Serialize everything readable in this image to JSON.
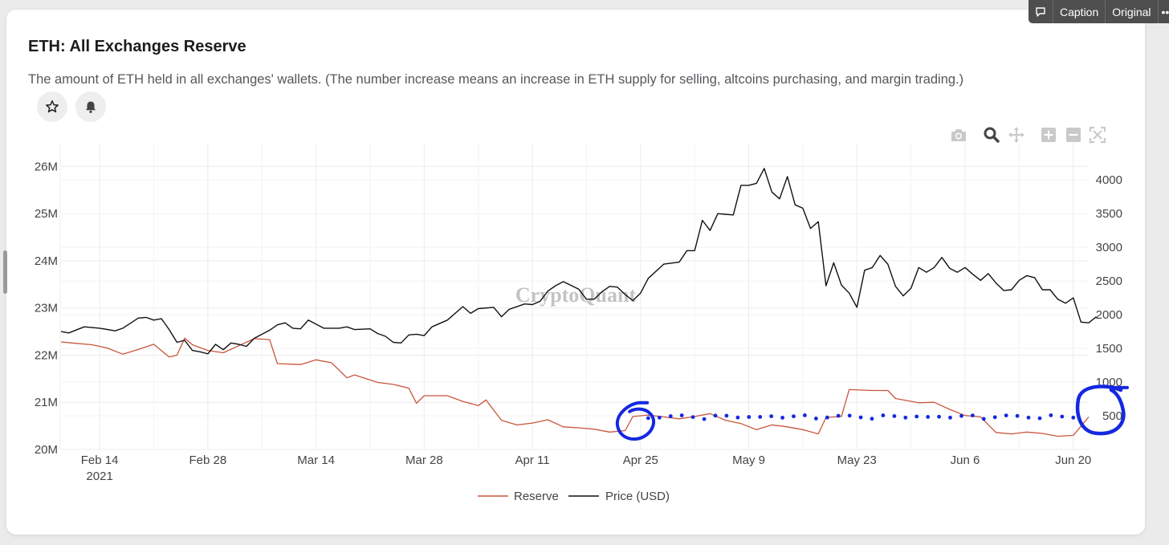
{
  "topbar": {
    "caption_label": "Caption",
    "original_label": "Original",
    "more_label": "•• "
  },
  "card": {
    "title": "ETH: All Exchanges Reserve",
    "description": "The amount of ETH held in all exchanges' wallets. (The number increase means an increase in ETH supply for selling, altcoins purchasing, and margin trading.)"
  },
  "icons": [
    "star-icon",
    "bell-icon",
    "camera-icon",
    "zoom-icon",
    "pan-icon",
    "zoom-in-icon",
    "zoom-out-icon",
    "autoscale-icon",
    "comment-icon"
  ],
  "colors": {
    "reserve": "#c8553d",
    "price": "#111111",
    "annotation": "#1428e0",
    "grid": "#ececec",
    "axis_text": "#444444"
  },
  "watermark": "CryptoQuant",
  "chart_data": {
    "type": "line",
    "x_start": "2021-02-09",
    "x_end": "2021-06-22",
    "x_step_days": 1,
    "xticks": [
      {
        "date": "2021-02-14",
        "label": "Feb 14",
        "sublabel": "2021"
      },
      {
        "date": "2021-02-28",
        "label": "Feb 28"
      },
      {
        "date": "2021-03-14",
        "label": "Mar 14"
      },
      {
        "date": "2021-03-28",
        "label": "Mar 28"
      },
      {
        "date": "2021-04-11",
        "label": "Apr 11"
      },
      {
        "date": "2021-04-25",
        "label": "Apr 25"
      },
      {
        "date": "2021-05-09",
        "label": "May 9"
      },
      {
        "date": "2021-05-23",
        "label": "May 23"
      },
      {
        "date": "2021-06-06",
        "label": "Jun 6"
      },
      {
        "date": "2021-06-20",
        "label": "Jun 20"
      }
    ],
    "y_left": {
      "range": [
        20000000,
        26500000
      ],
      "ticks": [
        20000000,
        21000000,
        22000000,
        23000000,
        24000000,
        25000000,
        26000000
      ],
      "tick_labels": [
        "20M",
        "21M",
        "22M",
        "23M",
        "24M",
        "25M",
        "26M"
      ]
    },
    "y_right": {
      "range": [
        0,
        4550
      ],
      "ticks": [
        500,
        1000,
        1500,
        2000,
        2500,
        3000,
        3500,
        4000
      ],
      "tick_labels": [
        "500",
        "1000",
        "1500",
        "2000",
        "2500",
        "3000",
        "3500",
        "4000"
      ]
    },
    "series": [
      {
        "name": "Reserve",
        "axis": "left",
        "keypoints": [
          [
            "2021-02-09",
            22280000
          ],
          [
            "2021-02-11",
            22250000
          ],
          [
            "2021-02-13",
            22220000
          ],
          [
            "2021-02-15",
            22150000
          ],
          [
            "2021-02-17",
            22020000
          ],
          [
            "2021-02-19",
            22120000
          ],
          [
            "2021-02-21",
            22230000
          ],
          [
            "2021-02-23",
            21960000
          ],
          [
            "2021-02-24",
            22000000
          ],
          [
            "2021-02-25",
            22360000
          ],
          [
            "2021-02-26",
            22220000
          ],
          [
            "2021-02-28",
            22100000
          ],
          [
            "2021-03-02",
            22050000
          ],
          [
            "2021-03-04",
            22200000
          ],
          [
            "2021-03-06",
            22350000
          ],
          [
            "2021-03-08",
            22330000
          ],
          [
            "2021-03-09",
            21820000
          ],
          [
            "2021-03-12",
            21800000
          ],
          [
            "2021-03-14",
            21900000
          ],
          [
            "2021-03-16",
            21840000
          ],
          [
            "2021-03-18",
            21520000
          ],
          [
            "2021-03-19",
            21580000
          ],
          [
            "2021-03-22",
            21420000
          ],
          [
            "2021-03-24",
            21380000
          ],
          [
            "2021-03-26",
            21300000
          ],
          [
            "2021-03-27",
            20980000
          ],
          [
            "2021-03-28",
            21140000
          ],
          [
            "2021-03-31",
            21140000
          ],
          [
            "2021-04-02",
            21020000
          ],
          [
            "2021-04-04",
            20930000
          ],
          [
            "2021-04-05",
            21050000
          ],
          [
            "2021-04-07",
            20620000
          ],
          [
            "2021-04-09",
            20520000
          ],
          [
            "2021-04-11",
            20560000
          ],
          [
            "2021-04-13",
            20630000
          ],
          [
            "2021-04-15",
            20480000
          ],
          [
            "2021-04-17",
            20460000
          ],
          [
            "2021-04-19",
            20430000
          ],
          [
            "2021-04-21",
            20370000
          ],
          [
            "2021-04-23",
            20400000
          ],
          [
            "2021-04-24",
            20700000
          ],
          [
            "2021-04-26",
            20730000
          ],
          [
            "2021-04-28",
            20690000
          ],
          [
            "2021-04-30",
            20650000
          ],
          [
            "2021-05-02",
            20700000
          ],
          [
            "2021-05-04",
            20760000
          ],
          [
            "2021-05-06",
            20620000
          ],
          [
            "2021-05-08",
            20550000
          ],
          [
            "2021-05-10",
            20420000
          ],
          [
            "2021-05-12",
            20520000
          ],
          [
            "2021-05-14",
            20480000
          ],
          [
            "2021-05-16",
            20420000
          ],
          [
            "2021-05-18",
            20330000
          ],
          [
            "2021-05-19",
            20680000
          ],
          [
            "2021-05-21",
            20700000
          ],
          [
            "2021-05-22",
            21270000
          ],
          [
            "2021-05-25",
            21250000
          ],
          [
            "2021-05-27",
            21250000
          ],
          [
            "2021-05-28",
            21080000
          ],
          [
            "2021-05-31",
            20990000
          ],
          [
            "2021-06-02",
            21000000
          ],
          [
            "2021-06-04",
            20850000
          ],
          [
            "2021-06-06",
            20720000
          ],
          [
            "2021-06-08",
            20690000
          ],
          [
            "2021-06-10",
            20360000
          ],
          [
            "2021-06-12",
            20330000
          ],
          [
            "2021-06-14",
            20370000
          ],
          [
            "2021-06-16",
            20340000
          ],
          [
            "2021-06-18",
            20280000
          ],
          [
            "2021-06-20",
            20300000
          ],
          [
            "2021-06-22",
            20690000
          ]
        ]
      },
      {
        "name": "Price (USD)",
        "axis": "right",
        "keypoints": [
          [
            "2021-02-09",
            1750
          ],
          [
            "2021-02-10",
            1730
          ],
          [
            "2021-02-12",
            1820
          ],
          [
            "2021-02-14",
            1800
          ],
          [
            "2021-02-16",
            1760
          ],
          [
            "2021-02-17",
            1800
          ],
          [
            "2021-02-19",
            1950
          ],
          [
            "2021-02-20",
            1960
          ],
          [
            "2021-02-21",
            1920
          ],
          [
            "2021-02-22",
            1940
          ],
          [
            "2021-02-23",
            1780
          ],
          [
            "2021-02-24",
            1590
          ],
          [
            "2021-02-25",
            1620
          ],
          [
            "2021-02-26",
            1470
          ],
          [
            "2021-02-27",
            1450
          ],
          [
            "2021-02-28",
            1420
          ],
          [
            "2021-03-01",
            1560
          ],
          [
            "2021-03-02",
            1480
          ],
          [
            "2021-03-03",
            1580
          ],
          [
            "2021-03-04",
            1560
          ],
          [
            "2021-03-05",
            1530
          ],
          [
            "2021-03-06",
            1650
          ],
          [
            "2021-03-08",
            1770
          ],
          [
            "2021-03-09",
            1850
          ],
          [
            "2021-03-10",
            1880
          ],
          [
            "2021-03-11",
            1800
          ],
          [
            "2021-03-12",
            1790
          ],
          [
            "2021-03-13",
            1920
          ],
          [
            "2021-03-15",
            1800
          ],
          [
            "2021-03-17",
            1800
          ],
          [
            "2021-03-18",
            1820
          ],
          [
            "2021-03-19",
            1780
          ],
          [
            "2021-03-21",
            1790
          ],
          [
            "2021-03-22",
            1720
          ],
          [
            "2021-03-23",
            1680
          ],
          [
            "2021-03-24",
            1590
          ],
          [
            "2021-03-25",
            1580
          ],
          [
            "2021-03-26",
            1700
          ],
          [
            "2021-03-27",
            1710
          ],
          [
            "2021-03-28",
            1690
          ],
          [
            "2021-03-29",
            1820
          ],
          [
            "2021-03-31",
            1920
          ],
          [
            "2021-04-02",
            2120
          ],
          [
            "2021-04-03",
            2020
          ],
          [
            "2021-04-04",
            2090
          ],
          [
            "2021-04-06",
            2110
          ],
          [
            "2021-04-07",
            1970
          ],
          [
            "2021-04-08",
            2080
          ],
          [
            "2021-04-10",
            2160
          ],
          [
            "2021-04-11",
            2150
          ],
          [
            "2021-04-12",
            2200
          ],
          [
            "2021-04-13",
            2350
          ],
          [
            "2021-04-14",
            2430
          ],
          [
            "2021-04-15",
            2490
          ],
          [
            "2021-04-17",
            2380
          ],
          [
            "2021-04-18",
            2230
          ],
          [
            "2021-04-19",
            2230
          ],
          [
            "2021-04-20",
            2340
          ],
          [
            "2021-04-21",
            2420
          ],
          [
            "2021-04-22",
            2410
          ],
          [
            "2021-04-23",
            2300
          ],
          [
            "2021-04-24",
            2210
          ],
          [
            "2021-04-25",
            2320
          ],
          [
            "2021-04-26",
            2540
          ],
          [
            "2021-04-28",
            2750
          ],
          [
            "2021-04-30",
            2780
          ],
          [
            "2021-05-01",
            2950
          ],
          [
            "2021-05-02",
            2950
          ],
          [
            "2021-05-03",
            3400
          ],
          [
            "2021-05-04",
            3250
          ],
          [
            "2021-05-05",
            3500
          ],
          [
            "2021-05-06",
            3490
          ],
          [
            "2021-05-07",
            3480
          ],
          [
            "2021-05-08",
            3920
          ],
          [
            "2021-05-09",
            3920
          ],
          [
            "2021-05-10",
            3950
          ],
          [
            "2021-05-11",
            4170
          ],
          [
            "2021-05-12",
            3820
          ],
          [
            "2021-05-13",
            3720
          ],
          [
            "2021-05-14",
            4050
          ],
          [
            "2021-05-15",
            3630
          ],
          [
            "2021-05-16",
            3580
          ],
          [
            "2021-05-17",
            3280
          ],
          [
            "2021-05-18",
            3380
          ],
          [
            "2021-05-19",
            2430
          ],
          [
            "2021-05-20",
            2770
          ],
          [
            "2021-05-21",
            2440
          ],
          [
            "2021-05-22",
            2320
          ],
          [
            "2021-05-23",
            2110
          ],
          [
            "2021-05-24",
            2660
          ],
          [
            "2021-05-25",
            2700
          ],
          [
            "2021-05-26",
            2880
          ],
          [
            "2021-05-27",
            2750
          ],
          [
            "2021-05-28",
            2420
          ],
          [
            "2021-05-29",
            2280
          ],
          [
            "2021-05-30",
            2390
          ],
          [
            "2021-05-31",
            2700
          ],
          [
            "2021-06-01",
            2630
          ],
          [
            "2021-06-02",
            2700
          ],
          [
            "2021-06-03",
            2850
          ],
          [
            "2021-06-04",
            2690
          ],
          [
            "2021-06-05",
            2630
          ],
          [
            "2021-06-06",
            2700
          ],
          [
            "2021-06-07",
            2600
          ],
          [
            "2021-06-08",
            2510
          ],
          [
            "2021-06-09",
            2610
          ],
          [
            "2021-06-10",
            2470
          ],
          [
            "2021-06-11",
            2360
          ],
          [
            "2021-06-12",
            2370
          ],
          [
            "2021-06-13",
            2510
          ],
          [
            "2021-06-14",
            2580
          ],
          [
            "2021-06-15",
            2550
          ],
          [
            "2021-06-16",
            2370
          ],
          [
            "2021-06-17",
            2370
          ],
          [
            "2021-06-18",
            2230
          ],
          [
            "2021-06-19",
            2170
          ],
          [
            "2021-06-20",
            2250
          ],
          [
            "2021-06-21",
            1890
          ],
          [
            "2021-06-22",
            1880
          ],
          [
            "2021-06-23",
            1970
          ]
        ]
      }
    ],
    "title": "ETH: All Exchanges Reserve",
    "xlabel": "",
    "ylabel": "",
    "legend": {
      "placement": "bottom-center",
      "entries": [
        "Reserve",
        "Price (USD)"
      ]
    },
    "grid": true,
    "annotations": [
      {
        "type": "hand-drawn-circle",
        "around": "2021-04-24",
        "axis": "left",
        "value": 20600000
      },
      {
        "type": "hand-drawn-dotted-line",
        "from": "2021-04-26",
        "to": "2021-06-20",
        "axis": "left",
        "value": 20700000
      },
      {
        "type": "hand-drawn-circle",
        "around": "2021-06-22",
        "axis": "left",
        "value": 20750000
      }
    ]
  }
}
